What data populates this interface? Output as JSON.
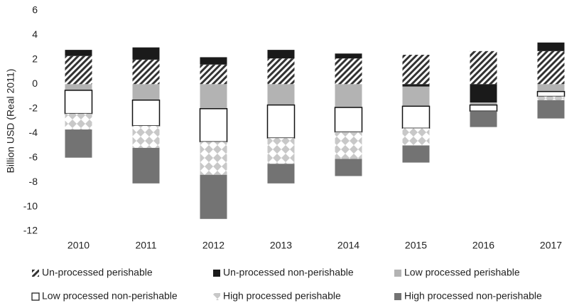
{
  "chart_data": {
    "type": "stacked_bar",
    "y_label": "Billion USD (Real 2011)",
    "categories": [
      "2010",
      "2011",
      "2012",
      "2013",
      "2014",
      "2015",
      "2016",
      "2017"
    ],
    "series": [
      {
        "name": "Un-processed perishable",
        "color": "#333333",
        "pattern": "hatch",
        "values": [
          2.3,
          2.0,
          1.6,
          2.1,
          2.1,
          2.4,
          2.7,
          2.7
        ]
      },
      {
        "name": "Un-processed non-perishable",
        "color": "#1a1a1a",
        "values": [
          0.5,
          1.0,
          0.6,
          0.7,
          0.4,
          -0.2,
          -1.5,
          0.7
        ]
      },
      {
        "name": "Low processed perishable",
        "color": "#b3b3b3",
        "values": [
          -0.5,
          -1.3,
          -2.0,
          -1.7,
          -1.9,
          -1.6,
          -0.2,
          -0.6
        ]
      },
      {
        "name": "Low processed non-perishable",
        "color": "#ffffff",
        "values": [
          -1.9,
          -2.1,
          -2.7,
          -2.7,
          -2.0,
          -1.8,
          -0.5,
          -0.4
        ]
      },
      {
        "name": "High processed perishable",
        "color": "#c8c8c8",
        "pattern": "diamond",
        "values": [
          -1.3,
          -1.8,
          -2.7,
          -2.1,
          -2.2,
          -1.4,
          0,
          -0.3
        ]
      },
      {
        "name": "High processed non-perishable",
        "color": "#737373",
        "values": [
          -2.3,
          -2.9,
          -3.6,
          -1.6,
          -1.4,
          -1.4,
          -1.3,
          -1.5
        ]
      }
    ],
    "ylim": [
      -12,
      6
    ],
    "yticks": [
      -12,
      -10,
      -8,
      -6,
      -4,
      -2,
      0,
      2,
      4,
      6
    ],
    "grid": false
  }
}
